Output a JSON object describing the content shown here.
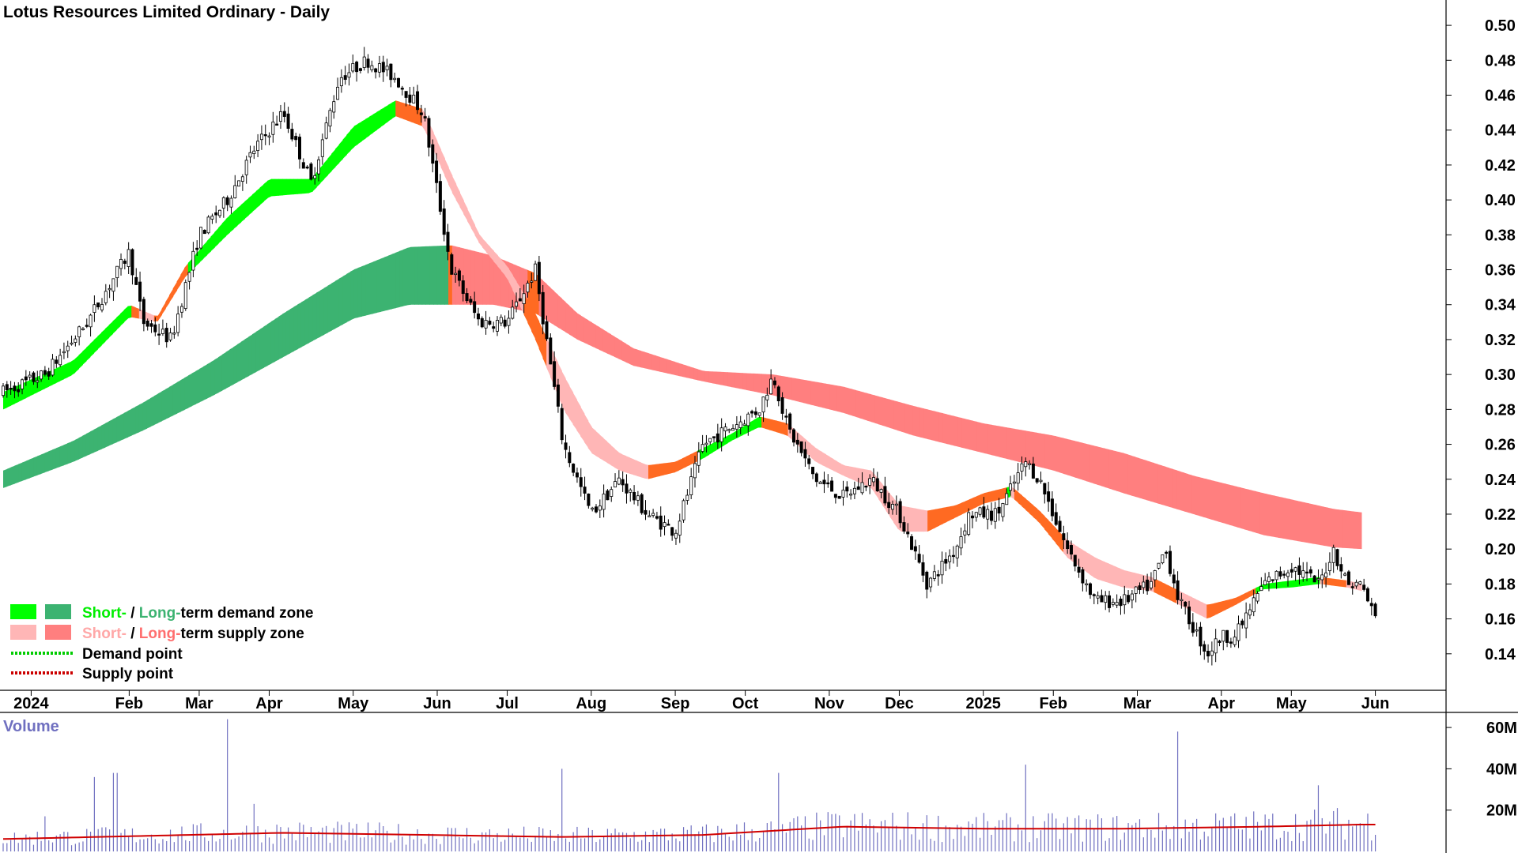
{
  "chart_data": {
    "type": "candlestick",
    "title": "Lotus Resources Limited Ordinary - Daily",
    "ylim": [
      0.12,
      0.51
    ],
    "y_ticks": [
      "0.50",
      "0.48",
      "0.46",
      "0.44",
      "0.42",
      "0.40",
      "0.38",
      "0.36",
      "0.34",
      "0.32",
      "0.30",
      "0.28",
      "0.26",
      "0.24",
      "0.22",
      "0.20",
      "0.18",
      "0.16",
      "0.14"
    ],
    "x_ticks": [
      "2024",
      "Feb",
      "Mar",
      "Apr",
      "May",
      "Jun",
      "Jul",
      "Aug",
      "Sep",
      "Oct",
      "Nov",
      "Dec",
      "2025",
      "Feb",
      "Mar",
      "Apr",
      "May",
      "Jun"
    ],
    "x_tick_pos": [
      0.02,
      0.09,
      0.14,
      0.19,
      0.25,
      0.31,
      0.36,
      0.42,
      0.48,
      0.53,
      0.59,
      0.64,
      0.7,
      0.75,
      0.81,
      0.87,
      0.92,
      0.98
    ],
    "price_path": [
      [
        0,
        0.29
      ],
      [
        0.03,
        0.3
      ],
      [
        0.06,
        0.33
      ],
      [
        0.09,
        0.37
      ],
      [
        0.1,
        0.33
      ],
      [
        0.12,
        0.32
      ],
      [
        0.14,
        0.38
      ],
      [
        0.16,
        0.4
      ],
      [
        0.18,
        0.43
      ],
      [
        0.2,
        0.45
      ],
      [
        0.22,
        0.41
      ],
      [
        0.24,
        0.47
      ],
      [
        0.26,
        0.48
      ],
      [
        0.28,
        0.47
      ],
      [
        0.3,
        0.45
      ],
      [
        0.32,
        0.36
      ],
      [
        0.34,
        0.33
      ],
      [
        0.36,
        0.33
      ],
      [
        0.38,
        0.36
      ],
      [
        0.4,
        0.26
      ],
      [
        0.42,
        0.22
      ],
      [
        0.44,
        0.24
      ],
      [
        0.46,
        0.22
      ],
      [
        0.48,
        0.21
      ],
      [
        0.5,
        0.26
      ],
      [
        0.52,
        0.27
      ],
      [
        0.54,
        0.28
      ],
      [
        0.55,
        0.3
      ],
      [
        0.56,
        0.27
      ],
      [
        0.58,
        0.24
      ],
      [
        0.6,
        0.23
      ],
      [
        0.62,
        0.24
      ],
      [
        0.64,
        0.22
      ],
      [
        0.66,
        0.18
      ],
      [
        0.68,
        0.2
      ],
      [
        0.69,
        0.22
      ],
      [
        0.71,
        0.22
      ],
      [
        0.73,
        0.25
      ],
      [
        0.74,
        0.24
      ],
      [
        0.76,
        0.2
      ],
      [
        0.78,
        0.17
      ],
      [
        0.8,
        0.17
      ],
      [
        0.82,
        0.18
      ],
      [
        0.83,
        0.2
      ],
      [
        0.84,
        0.17
      ],
      [
        0.86,
        0.14
      ],
      [
        0.87,
        0.15
      ],
      [
        0.88,
        0.15
      ],
      [
        0.9,
        0.18
      ],
      [
        0.92,
        0.19
      ],
      [
        0.94,
        0.18
      ],
      [
        0.95,
        0.2
      ],
      [
        0.96,
        0.18
      ],
      [
        0.97,
        0.18
      ],
      [
        0.98,
        0.16
      ]
    ],
    "short_band": [
      [
        0,
        0.28,
        0.29
      ],
      [
        0.05,
        0.3,
        0.308
      ],
      [
        0.09,
        0.333,
        0.34
      ],
      [
        0.11,
        0.33,
        0.333
      ],
      [
        0.13,
        0.356,
        0.362
      ],
      [
        0.16,
        0.38,
        0.39
      ],
      [
        0.19,
        0.402,
        0.412
      ],
      [
        0.22,
        0.404,
        0.412
      ],
      [
        0.25,
        0.43,
        0.442
      ],
      [
        0.28,
        0.448,
        0.457
      ],
      [
        0.3,
        0.442,
        0.452
      ],
      [
        0.32,
        0.405,
        0.415
      ],
      [
        0.34,
        0.375,
        0.38
      ],
      [
        0.36,
        0.355,
        0.362
      ],
      [
        0.38,
        0.32,
        0.335
      ],
      [
        0.4,
        0.28,
        0.3
      ],
      [
        0.42,
        0.255,
        0.27
      ],
      [
        0.44,
        0.245,
        0.255
      ],
      [
        0.46,
        0.24,
        0.248
      ],
      [
        0.48,
        0.244,
        0.25
      ],
      [
        0.5,
        0.252,
        0.258
      ],
      [
        0.52,
        0.262,
        0.266
      ],
      [
        0.54,
        0.27,
        0.276
      ],
      [
        0.56,
        0.265,
        0.272
      ],
      [
        0.58,
        0.25,
        0.258
      ],
      [
        0.6,
        0.242,
        0.248
      ],
      [
        0.62,
        0.235,
        0.245
      ],
      [
        0.64,
        0.21,
        0.225
      ],
      [
        0.66,
        0.21,
        0.222
      ],
      [
        0.68,
        0.218,
        0.225
      ],
      [
        0.7,
        0.226,
        0.232
      ],
      [
        0.72,
        0.23,
        0.236
      ],
      [
        0.74,
        0.215,
        0.222
      ],
      [
        0.76,
        0.195,
        0.205
      ],
      [
        0.78,
        0.183,
        0.195
      ],
      [
        0.8,
        0.178,
        0.188
      ],
      [
        0.82,
        0.176,
        0.184
      ],
      [
        0.84,
        0.168,
        0.176
      ],
      [
        0.86,
        0.16,
        0.168
      ],
      [
        0.88,
        0.168,
        0.172
      ],
      [
        0.9,
        0.177,
        0.18
      ],
      [
        0.92,
        0.178,
        0.182
      ],
      [
        0.94,
        0.18,
        0.184
      ],
      [
        0.96,
        0.178,
        0.182
      ],
      [
        0.97,
        0.176,
        0.18
      ]
    ],
    "long_band": [
      [
        0,
        0.235,
        0.245
      ],
      [
        0.05,
        0.25,
        0.262
      ],
      [
        0.1,
        0.268,
        0.284
      ],
      [
        0.15,
        0.288,
        0.308
      ],
      [
        0.2,
        0.31,
        0.335
      ],
      [
        0.25,
        0.332,
        0.36
      ],
      [
        0.29,
        0.34,
        0.373
      ],
      [
        0.32,
        0.34,
        0.374
      ],
      [
        0.35,
        0.34,
        0.368
      ],
      [
        0.38,
        0.335,
        0.358
      ],
      [
        0.41,
        0.32,
        0.335
      ],
      [
        0.45,
        0.305,
        0.315
      ],
      [
        0.5,
        0.296,
        0.302
      ],
      [
        0.55,
        0.288,
        0.3
      ],
      [
        0.6,
        0.278,
        0.293
      ],
      [
        0.65,
        0.265,
        0.282
      ],
      [
        0.7,
        0.255,
        0.272
      ],
      [
        0.75,
        0.245,
        0.265
      ],
      [
        0.8,
        0.232,
        0.255
      ],
      [
        0.85,
        0.22,
        0.242
      ],
      [
        0.9,
        0.208,
        0.232
      ],
      [
        0.95,
        0.201,
        0.223
      ],
      [
        0.97,
        0.2,
        0.221
      ]
    ],
    "legend": {
      "row1": {
        "short": "Short-",
        "slash": " / ",
        "long": "Long-",
        "rest": "term demand zone"
      },
      "row2": {
        "short": "Short-",
        "slash": " / ",
        "long": "Long-",
        "rest": "term supply zone"
      },
      "demand_point": "Demand point",
      "supply_point": "Supply point"
    },
    "volume": {
      "title": "Volume",
      "ylim": [
        0,
        65
      ],
      "ticks": [
        "60M",
        "40M",
        "20M"
      ],
      "average_level": [
        [
          0,
          6
        ],
        [
          0.2,
          9
        ],
        [
          0.3,
          8
        ],
        [
          0.4,
          7
        ],
        [
          0.5,
          8
        ],
        [
          0.6,
          12
        ],
        [
          0.7,
          11
        ],
        [
          0.8,
          11
        ],
        [
          0.9,
          12
        ],
        [
          0.97,
          13
        ]
      ],
      "spikes": [
        [
          0.03,
          17
        ],
        [
          0.065,
          36
        ],
        [
          0.08,
          38
        ],
        [
          0.16,
          64
        ],
        [
          0.18,
          23
        ],
        [
          0.4,
          40
        ],
        [
          0.555,
          38
        ],
        [
          0.73,
          42
        ],
        [
          0.84,
          58
        ],
        [
          0.94,
          32
        ]
      ]
    }
  },
  "colors": {
    "short_demand": "#00ff00",
    "long_demand": "#3cb371",
    "short_supply": "#ffb6b6",
    "long_supply": "#ff7f7f",
    "transition": "#ff6a22",
    "volume_bar": "#7070c0",
    "volume_avg": "#d00000",
    "demand_point": "#00cc00",
    "supply_point": "#cc0000"
  }
}
